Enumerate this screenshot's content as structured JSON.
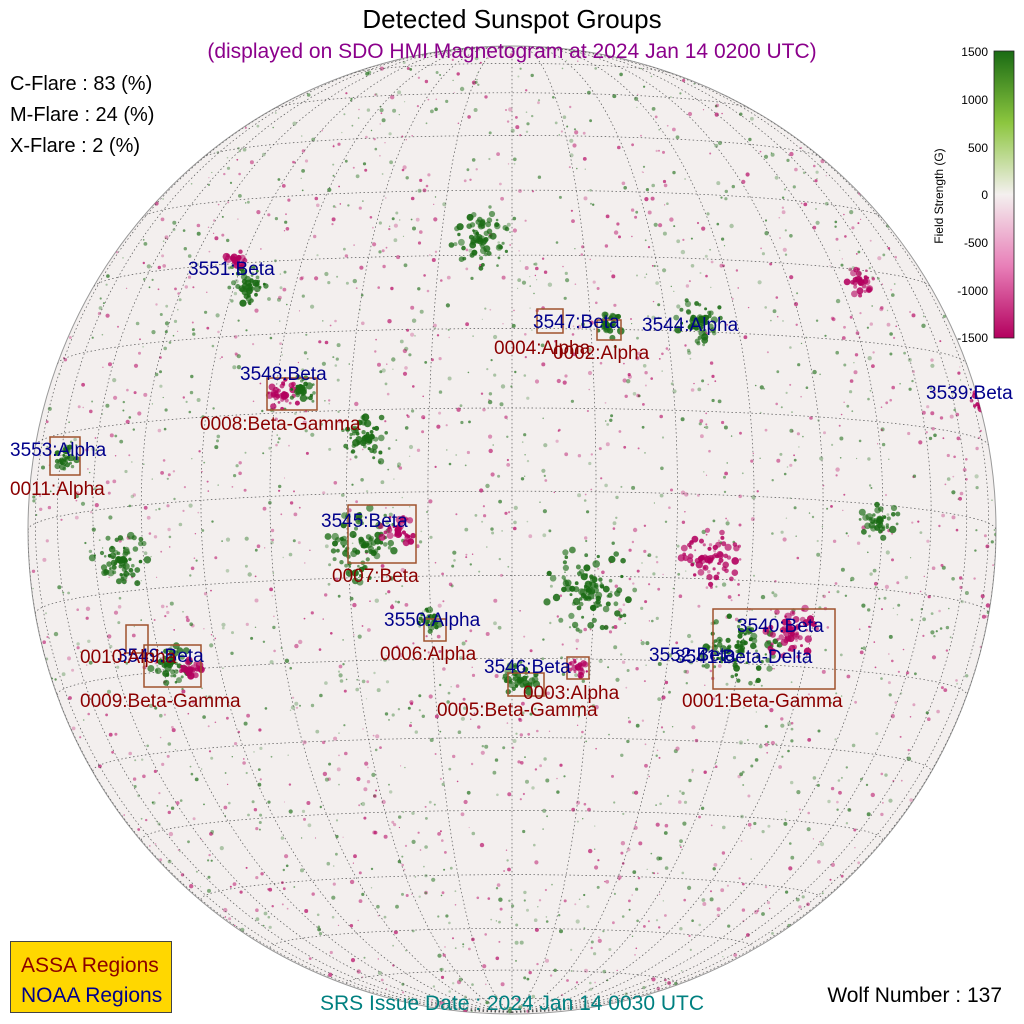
{
  "title": "Detected Sunspot Groups",
  "subtitle": "(displayed on SDO HMI Magnetogram at 2024 Jan 14 0200 UTC)",
  "flare_probabilities": [
    {
      "label": "C-Flare : 83 (%)"
    },
    {
      "label": "M-Flare : 24 (%)"
    },
    {
      "label": "X-Flare :  2 (%)"
    }
  ],
  "colorbar": {
    "label": "Field Strength (G)",
    "ticks": [
      "1500",
      "1000",
      "500",
      "0",
      "-500",
      "-1000",
      "-1500"
    ],
    "colors": {
      "positive": "#1a6b14",
      "mid": "#f4f0ef",
      "negative": "#b3005e"
    }
  },
  "legend": {
    "assa": "ASSA Regions",
    "noaa": "NOAA Regions",
    "colors": {
      "background": "#ffd700",
      "assa": "#8b0000",
      "noaa": "#00008b"
    }
  },
  "regions": {
    "noaa": [
      {
        "label": "3551:Beta"
      },
      {
        "label": "3547:Beta"
      },
      {
        "label": "3544:Alpha"
      },
      {
        "label": "3539:Beta"
      },
      {
        "label": "3548:Beta"
      },
      {
        "label": "3553:Alpha"
      },
      {
        "label": "3545:Beta"
      },
      {
        "label": "3550:Alpha"
      },
      {
        "label": "3549:Beta"
      },
      {
        "label": "3546:Beta"
      },
      {
        "label": "3540:Beta"
      },
      {
        "label": "3552:Beta"
      },
      {
        "label": "3541:Beta-Delta"
      }
    ],
    "assa": [
      {
        "label": "0004:Alpha"
      },
      {
        "label": "0002:Alpha"
      },
      {
        "label": "0008:Beta-Gamma"
      },
      {
        "label": "0011:Alpha"
      },
      {
        "label": "0007:Beta"
      },
      {
        "label": "0006:Alpha"
      },
      {
        "label": "0010:Alpha"
      },
      {
        "label": "0009:Beta-Gamma"
      },
      {
        "label": "0003:Alpha"
      },
      {
        "label": "0005:Beta-Gamma"
      },
      {
        "label": "0001:Beta-Gamma"
      }
    ]
  },
  "srs_issue": "SRS Issue Date : 2024 Jan 14 0030 UTC",
  "wolf_number": "Wolf Number : 137"
}
